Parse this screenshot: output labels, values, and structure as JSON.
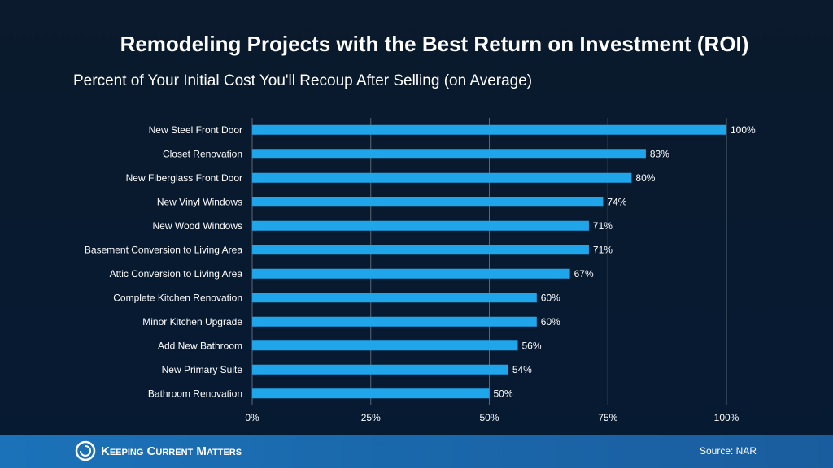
{
  "chart_data": {
    "type": "bar",
    "orientation": "horizontal",
    "title": "Remodeling Projects with the Best Return on Investment (ROI)",
    "subtitle": "Percent of Your Initial Cost You'll Recoup After Selling (on Average)",
    "categories": [
      "New Steel Front Door",
      "Closet Renovation",
      "New Fiberglass Front Door",
      "New Vinyl Windows",
      "New Wood Windows",
      "Basement Conversion to Living Area",
      "Attic Conversion to Living Area",
      "Complete Kitchen Renovation",
      "Minor Kitchen Upgrade",
      "Add New Bathroom",
      "New Primary Suite",
      "Bathroom Renovation"
    ],
    "values": [
      100,
      83,
      80,
      74,
      71,
      71,
      67,
      60,
      60,
      56,
      54,
      50
    ],
    "value_labels": [
      "100%",
      "83%",
      "80%",
      "74%",
      "71%",
      "71%",
      "67%",
      "60%",
      "60%",
      "56%",
      "54%",
      "50%"
    ],
    "color": "#1ea5ea",
    "xlim": [
      0,
      100
    ],
    "xticks": [
      {
        "value": 0,
        "label": "0%"
      },
      {
        "value": 25,
        "label": "25%"
      },
      {
        "value": 50,
        "label": "50%"
      },
      {
        "value": 75,
        "label": "75%"
      },
      {
        "value": 100,
        "label": "100%"
      }
    ],
    "grid": true
  },
  "footer": {
    "brand": "Keeping Current Matters",
    "source": "Source: NAR"
  }
}
